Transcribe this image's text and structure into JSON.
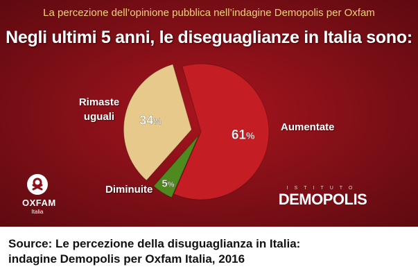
{
  "header": {
    "subtitle": "La percezione dell’opinione pubblica nell’indagine Demopolis per Oxfam",
    "title": "Negli ultimi 5 anni, le diseguaglianze in Italia sono:"
  },
  "chart_data": {
    "type": "pie",
    "slices": [
      {
        "label": "Aumentate",
        "value": 61,
        "display": "61",
        "color": "#c41e24"
      },
      {
        "label": "Diminuite",
        "value": 5,
        "display": "5",
        "color": "#4f8a1e"
      },
      {
        "label": "Rimaste uguali",
        "value": 34,
        "display": "34",
        "color": "#e8c98c"
      }
    ],
    "percent_sign": "%"
  },
  "labels": {
    "rimaste_line1": "Rimaste",
    "rimaste_line2": "uguali",
    "aumentate": "Aumentate",
    "diminuite": "Diminuite"
  },
  "logos": {
    "oxfam_name": "OXFAM",
    "oxfam_sub": "Italia",
    "demopolis_top": "ISTITUTO",
    "demopolis_name": "DEMOPOLIS"
  },
  "source": {
    "line1": "Source: Le percezione della disuguaglianza in Italia:",
    "line2": "indagine Demopolis per Oxfam Italia, 2016"
  }
}
